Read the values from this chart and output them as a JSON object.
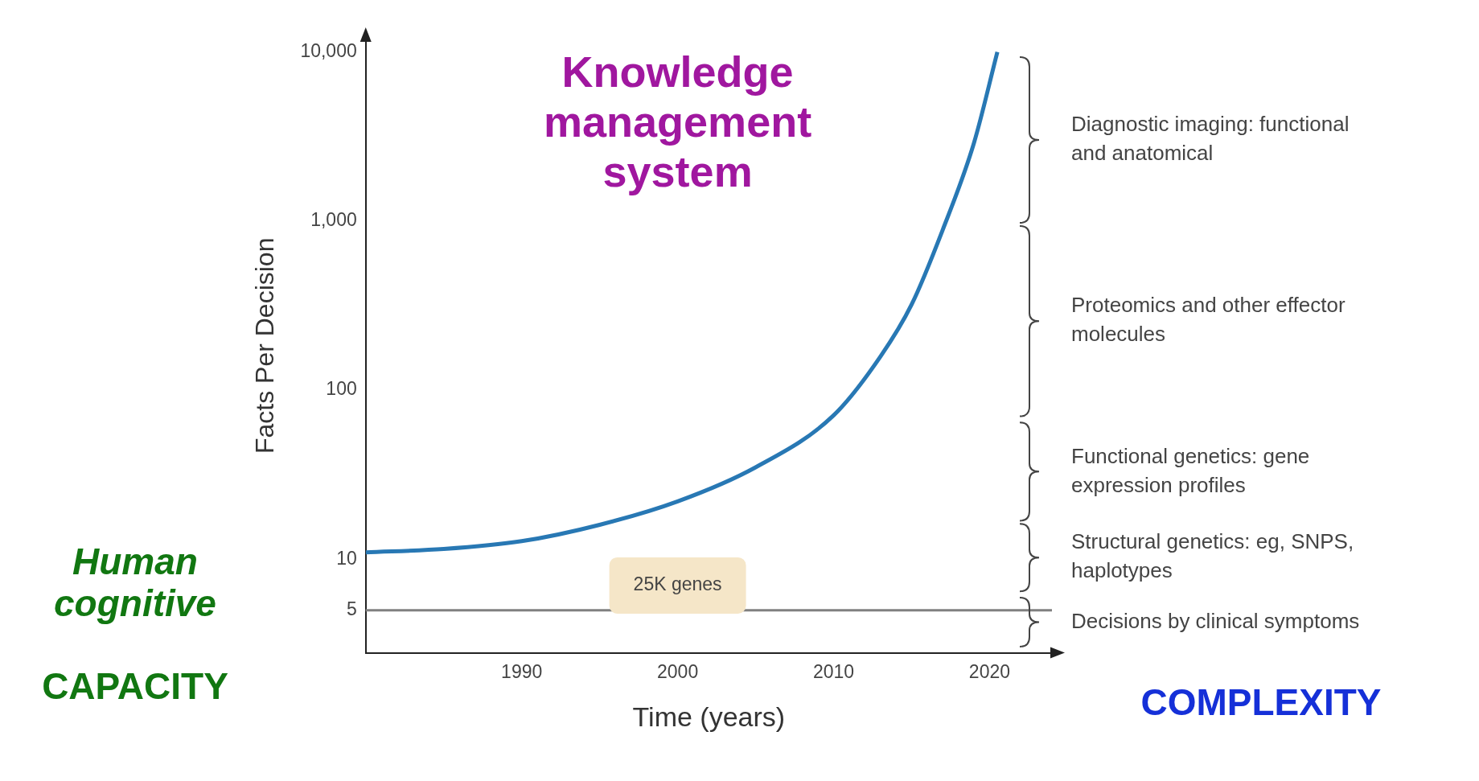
{
  "chart_data": {
    "type": "line",
    "xlabel": "Time (years)",
    "ylabel": "Facts Per Decision",
    "log": "y",
    "x": [
      1980,
      1985,
      1990,
      1995,
      2000,
      2005,
      2010,
      2013,
      2015,
      2017,
      2019,
      2020.5
    ],
    "series": [
      {
        "color": "#2878b4",
        "values": [
          11,
          11.5,
          12.8,
          16,
          22,
          35,
          71,
          158,
          321,
          890,
          2900,
          10000
        ]
      }
    ],
    "xlim": [
      1980,
      2024
    ],
    "xticks": [
      1990,
      2000,
      2010,
      2020
    ],
    "ylim": [
      2.8,
      12000
    ],
    "yticks": [
      5,
      10,
      100,
      {
        "value": 1000,
        "label": "1,000"
      },
      {
        "value": 10000,
        "label": "10,000"
      }
    ],
    "grid": false,
    "legend": false,
    "marker": "none",
    "line_style": "solid",
    "ref_lines": [
      {
        "axis": "y",
        "value": 5,
        "color": "#808080"
      }
    ],
    "annotations": [
      "Knowledge management system",
      "25K genes",
      "Human cognitive",
      "CAPACITY",
      "COMPLEXITY",
      "Diagnostic imaging: functional and anatomical",
      "Proteomics and other effector molecules",
      "Functional genetics: gene expression profiles",
      "Structural genetics: eg, SNPS, haplotypes",
      "Decisions by clinical symptoms"
    ]
  }
}
